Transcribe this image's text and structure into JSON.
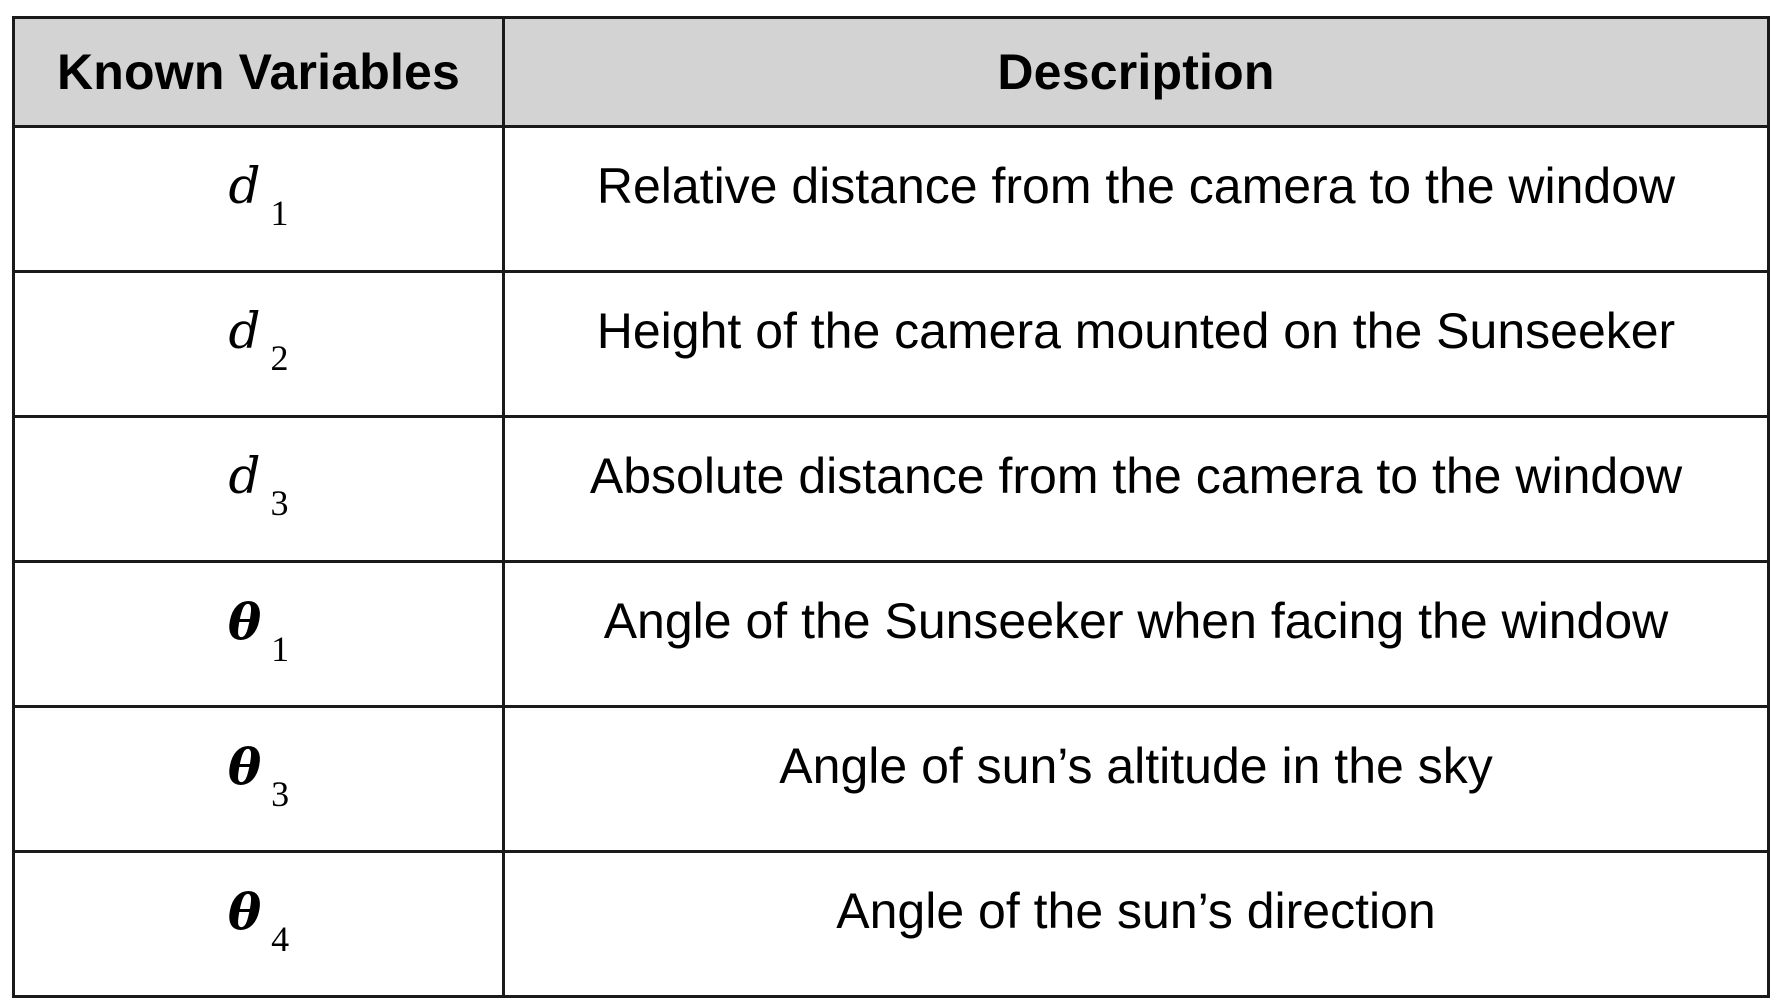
{
  "table": {
    "headers": {
      "variable": "Known Variables",
      "description": "Description"
    },
    "rows": [
      {
        "symbol": "d",
        "subscript": "1",
        "bold": false,
        "description": "Relative distance from the camera to the window"
      },
      {
        "symbol": "d",
        "subscript": "2",
        "bold": false,
        "description": "Height of the camera mounted on the Sunseeker"
      },
      {
        "symbol": "d",
        "subscript": "3",
        "bold": false,
        "description": "Absolute distance from the camera to the window"
      },
      {
        "symbol": "θ",
        "subscript": "1",
        "bold": true,
        "description": "Angle of the Sunseeker when facing the window"
      },
      {
        "symbol": "θ",
        "subscript": "3",
        "bold": true,
        "description": "Angle of sun’s altitude in the sky"
      },
      {
        "symbol": "θ",
        "subscript": "4",
        "bold": true,
        "description": "Angle of the sun’s direction"
      }
    ]
  },
  "colors": {
    "header_background": "#d3d3d3",
    "border": "#1a1a1a"
  }
}
